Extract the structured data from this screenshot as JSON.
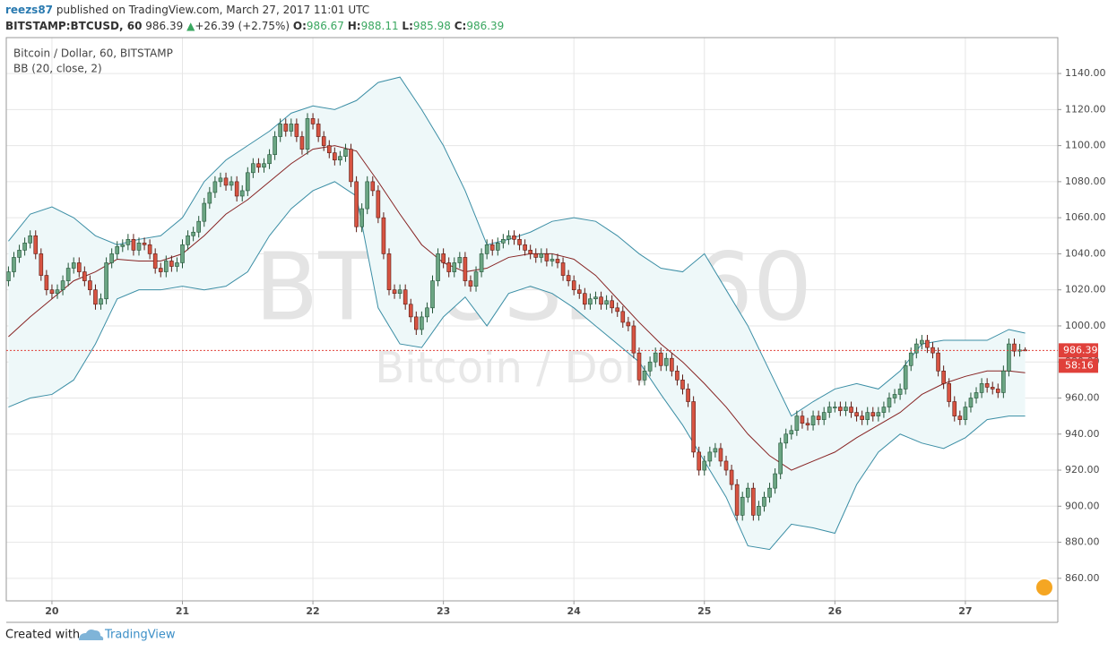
{
  "header": {
    "user": "reezs87",
    "published": "published on TradingView.com, March 27, 2017 11:01 UTC",
    "symbol": "BITSTAMP:BTCUSD, 60",
    "last": "986.39",
    "change_arrow": "▲",
    "change": "+26.39 (+2.75%)",
    "ohlc": [
      {
        "label": "O:",
        "value": "986.67"
      },
      {
        "label": "H:",
        "value": "988.11"
      },
      {
        "label": "L:",
        "value": "985.98"
      },
      {
        "label": "C:",
        "value": "986.39"
      }
    ]
  },
  "footer": {
    "created": "Created with",
    "brand": "TradingView"
  },
  "chart_data": {
    "type": "candlestick",
    "title": "Bitcoin / Dollar, 60, BITSTAMP",
    "watermark": "BTCUSD, 60",
    "watermark_subtitle": "Bitcoin / Dollar",
    "x": [
      -8,
      -7,
      -6,
      -5,
      -4,
      -3,
      -2,
      -1,
      0,
      1,
      2,
      3,
      4,
      5,
      6,
      7,
      8,
      9,
      10,
      11,
      12,
      13,
      14,
      15,
      16,
      17,
      18,
      19,
      20,
      21,
      22,
      23,
      24,
      25,
      26,
      27,
      28,
      29,
      30,
      31,
      32,
      33,
      34,
      35,
      36,
      37,
      38,
      39,
      40,
      41,
      42,
      43,
      44,
      45,
      46,
      47,
      48,
      49,
      50,
      51,
      52,
      53,
      54,
      55,
      56,
      57,
      58,
      59,
      60,
      61,
      62,
      63,
      64,
      65,
      66,
      67,
      68,
      69,
      70,
      71,
      72,
      73,
      74,
      75,
      76,
      77,
      78,
      79,
      80,
      81,
      82,
      83,
      84,
      85,
      86,
      87,
      88,
      89,
      90,
      91,
      92,
      93,
      94,
      95,
      96,
      97,
      98,
      99,
      100,
      101,
      102,
      103,
      104,
      105,
      106,
      107,
      108,
      109,
      110,
      111,
      112,
      113,
      114,
      115,
      116,
      117,
      118,
      119,
      120,
      121,
      122,
      123,
      124,
      125,
      126,
      127,
      128,
      129,
      130,
      131,
      132,
      133,
      134,
      135,
      136,
      137,
      138,
      139,
      140,
      141,
      142,
      143,
      144,
      145,
      146,
      147,
      148,
      149,
      150,
      151,
      152,
      153,
      154,
      155,
      156,
      157,
      158,
      159,
      160,
      161,
      162,
      163,
      164,
      165,
      166,
      167,
      168,
      169,
      170,
      171,
      172,
      173,
      174,
      175,
      176,
      177,
      178,
      179
    ],
    "open": [
      1025,
      1030,
      1038,
      1042,
      1046,
      1050,
      1040,
      1028,
      1020,
      1018,
      1020,
      1025,
      1032,
      1035,
      1030,
      1025,
      1020,
      1012,
      1015,
      1035,
      1040,
      1044,
      1045,
      1048,
      1042,
      1046,
      1045,
      1040,
      1032,
      1030,
      1036,
      1033,
      1035,
      1045,
      1050,
      1052,
      1058,
      1068,
      1074,
      1080,
      1082,
      1078,
      1080,
      1072,
      1075,
      1085,
      1090,
      1088,
      1090,
      1095,
      1105,
      1112,
      1108,
      1112,
      1105,
      1098,
      1115,
      1112,
      1105,
      1100,
      1096,
      1092,
      1094,
      1098,
      1080,
      1055,
      1065,
      1080,
      1075,
      1060,
      1040,
      1020,
      1018,
      1020,
      1012,
      1005,
      998,
      1005,
      1010,
      1025,
      1040,
      1035,
      1030,
      1035,
      1038,
      1025,
      1022,
      1030,
      1040,
      1045,
      1042,
      1046,
      1048,
      1050,
      1048,
      1045,
      1042,
      1040,
      1038,
      1040,
      1036,
      1037,
      1035,
      1028,
      1025,
      1020,
      1018,
      1012,
      1015,
      1016,
      1012,
      1014,
      1010,
      1008,
      1002,
      1000,
      985,
      970,
      975,
      980,
      985,
      978,
      982,
      975,
      970,
      965,
      958,
      930,
      920,
      925,
      930,
      932,
      925,
      920,
      912,
      895,
      905,
      910,
      895,
      900,
      905,
      910,
      918,
      935,
      940,
      942,
      950,
      946,
      945,
      950,
      948,
      952,
      955,
      955,
      953,
      955,
      952,
      950,
      948,
      952,
      950,
      952,
      955,
      960,
      962,
      965,
      978,
      985,
      990,
      992,
      988,
      985,
      975,
      968,
      958,
      950,
      948,
      955,
      960,
      963,
      968,
      966,
      965,
      963,
      975,
      990,
      986,
      986.67
    ],
    "high": [
      1033,
      1041,
      1045,
      1049,
      1053,
      1053,
      1043,
      1031,
      1023,
      1023,
      1028,
      1035,
      1038,
      1038,
      1033,
      1028,
      1023,
      1018,
      1038,
      1043,
      1047,
      1048,
      1051,
      1051,
      1049,
      1049,
      1048,
      1043,
      1035,
      1039,
      1039,
      1038,
      1048,
      1053,
      1055,
      1061,
      1071,
      1077,
      1083,
      1085,
      1085,
      1083,
      1083,
      1078,
      1088,
      1093,
      1093,
      1093,
      1098,
      1108,
      1115,
      1115,
      1115,
      1115,
      1108,
      1118,
      1118,
      1115,
      1108,
      1103,
      1099,
      1097,
      1101,
      1101,
      1083,
      1068,
      1083,
      1083,
      1078,
      1063,
      1043,
      1023,
      1023,
      1023,
      1015,
      1008,
      1008,
      1013,
      1028,
      1043,
      1043,
      1038,
      1038,
      1041,
      1041,
      1028,
      1033,
      1043,
      1048,
      1048,
      1049,
      1051,
      1053,
      1053,
      1051,
      1048,
      1045,
      1043,
      1043,
      1043,
      1040,
      1040,
      1038,
      1031,
      1028,
      1023,
      1021,
      1018,
      1019,
      1019,
      1017,
      1017,
      1013,
      1011,
      1005,
      1003,
      988,
      978,
      983,
      988,
      988,
      985,
      985,
      978,
      973,
      968,
      961,
      933,
      928,
      933,
      935,
      935,
      928,
      923,
      915,
      908,
      913,
      913,
      903,
      908,
      913,
      921,
      938,
      943,
      945,
      953,
      953,
      949,
      953,
      953,
      955,
      958,
      958,
      958,
      958,
      958,
      955,
      953,
      955,
      955,
      955,
      958,
      963,
      965,
      968,
      981,
      988,
      993,
      995,
      995,
      991,
      988,
      978,
      971,
      961,
      953,
      958,
      963,
      966,
      971,
      971,
      969,
      968,
      978,
      993,
      993,
      990,
      988.11
    ],
    "low": [
      1022,
      1027,
      1035,
      1039,
      1043,
      1037,
      1025,
      1017,
      1015,
      1015,
      1017,
      1022,
      1029,
      1027,
      1022,
      1017,
      1009,
      1009,
      1012,
      1032,
      1037,
      1041,
      1042,
      1039,
      1039,
      1042,
      1037,
      1029,
      1027,
      1027,
      1030,
      1030,
      1032,
      1042,
      1047,
      1049,
      1055,
      1065,
      1071,
      1077,
      1075,
      1075,
      1069,
      1069,
      1072,
      1082,
      1085,
      1085,
      1087,
      1092,
      1102,
      1105,
      1105,
      1102,
      1095,
      1095,
      1109,
      1102,
      1097,
      1093,
      1089,
      1089,
      1091,
      1077,
      1052,
      1052,
      1062,
      1072,
      1057,
      1037,
      1017,
      1015,
      1015,
      1009,
      1002,
      995,
      995,
      1002,
      1007,
      1022,
      1032,
      1027,
      1027,
      1032,
      1022,
      1019,
      1019,
      1027,
      1037,
      1039,
      1039,
      1043,
      1045,
      1045,
      1042,
      1039,
      1037,
      1035,
      1035,
      1033,
      1033,
      1032,
      1025,
      1022,
      1017,
      1015,
      1009,
      1009,
      1012,
      1009,
      1009,
      1007,
      1005,
      999,
      997,
      982,
      967,
      967,
      972,
      977,
      975,
      975,
      972,
      967,
      962,
      955,
      927,
      917,
      917,
      922,
      927,
      922,
      917,
      909,
      892,
      892,
      902,
      892,
      892,
      897,
      902,
      907,
      915,
      932,
      937,
      939,
      943,
      942,
      942,
      945,
      945,
      949,
      952,
      950,
      950,
      949,
      947,
      945,
      945,
      947,
      947,
      949,
      952,
      957,
      959,
      962,
      975,
      982,
      987,
      985,
      982,
      972,
      965,
      955,
      947,
      945,
      945,
      952,
      957,
      960,
      963,
      962,
      960,
      960,
      972,
      983,
      983,
      985.98
    ],
    "close": [
      1030,
      1038,
      1042,
      1046,
      1050,
      1040,
      1028,
      1020,
      1018,
      1020,
      1025,
      1032,
      1035,
      1030,
      1025,
      1020,
      1012,
      1015,
      1035,
      1040,
      1044,
      1045,
      1048,
      1042,
      1046,
      1045,
      1040,
      1032,
      1030,
      1036,
      1033,
      1035,
      1045,
      1050,
      1052,
      1058,
      1068,
      1074,
      1080,
      1082,
      1078,
      1080,
      1072,
      1075,
      1085,
      1090,
      1088,
      1090,
      1095,
      1105,
      1112,
      1108,
      1112,
      1105,
      1098,
      1115,
      1112,
      1105,
      1100,
      1096,
      1092,
      1094,
      1098,
      1080,
      1055,
      1065,
      1080,
      1075,
      1060,
      1040,
      1020,
      1018,
      1020,
      1012,
      1005,
      998,
      1005,
      1010,
      1025,
      1040,
      1035,
      1030,
      1035,
      1038,
      1025,
      1022,
      1030,
      1040,
      1045,
      1042,
      1046,
      1048,
      1050,
      1048,
      1045,
      1042,
      1040,
      1038,
      1040,
      1036,
      1037,
      1035,
      1028,
      1025,
      1020,
      1018,
      1012,
      1015,
      1016,
      1012,
      1014,
      1010,
      1008,
      1002,
      1000,
      985,
      970,
      975,
      980,
      985,
      978,
      982,
      975,
      970,
      965,
      958,
      930,
      920,
      925,
      930,
      932,
      925,
      920,
      912,
      895,
      905,
      910,
      895,
      900,
      905,
      910,
      918,
      935,
      940,
      942,
      950,
      946,
      945,
      950,
      948,
      952,
      955,
      955,
      953,
      955,
      952,
      950,
      948,
      952,
      950,
      952,
      955,
      960,
      962,
      965,
      978,
      985,
      990,
      992,
      988,
      985,
      975,
      968,
      958,
      950,
      948,
      955,
      960,
      963,
      968,
      966,
      965,
      963,
      975,
      990,
      986,
      986.67,
      986.39
    ],
    "up_color": "#6ba583",
    "down_color": "#d75442",
    "indicator": {
      "name": "BB (20, close, 2)",
      "x": [
        -8,
        -4,
        0,
        4,
        8,
        12,
        16,
        20,
        24,
        28,
        32,
        36,
        40,
        44,
        48,
        52,
        56,
        60,
        64,
        68,
        72,
        76,
        80,
        84,
        88,
        92,
        96,
        100,
        104,
        108,
        112,
        116,
        120,
        124,
        128,
        132,
        136,
        140,
        144,
        148,
        152,
        156,
        160,
        164,
        168,
        172,
        176,
        179
      ],
      "upper": [
        1047,
        1062,
        1066,
        1060,
        1050,
        1045,
        1048,
        1050,
        1060,
        1080,
        1092,
        1100,
        1108,
        1118,
        1122,
        1120,
        1125,
        1135,
        1138,
        1120,
        1100,
        1075,
        1045,
        1048,
        1052,
        1058,
        1060,
        1058,
        1050,
        1040,
        1032,
        1030,
        1040,
        1020,
        1000,
        975,
        950,
        958,
        965,
        968,
        965,
        975,
        990,
        992,
        992,
        992,
        998,
        996
      ],
      "middle": [
        994,
        1005,
        1015,
        1025,
        1030,
        1037,
        1036,
        1036,
        1040,
        1050,
        1062,
        1070,
        1080,
        1090,
        1098,
        1100,
        1097,
        1080,
        1062,
        1045,
        1035,
        1030,
        1032,
        1038,
        1040,
        1040,
        1037,
        1028,
        1015,
        1002,
        990,
        980,
        968,
        955,
        940,
        928,
        920,
        925,
        930,
        938,
        945,
        952,
        962,
        968,
        972,
        975,
        975,
        974
      ],
      "lower": [
        955,
        960,
        962,
        970,
        990,
        1015,
        1020,
        1020,
        1022,
        1020,
        1022,
        1030,
        1050,
        1065,
        1075,
        1080,
        1072,
        1010,
        990,
        988,
        1005,
        1016,
        1000,
        1018,
        1022,
        1018,
        1010,
        1000,
        990,
        980,
        962,
        945,
        925,
        905,
        878,
        876,
        890,
        888,
        885,
        912,
        930,
        940,
        935,
        932,
        938,
        948,
        950,
        950
      ],
      "band_color": "#3b8ea5",
      "middle_color": "#872323",
      "fill_color": "#eef8f9"
    },
    "last_price": 986.39,
    "last_price_color": "#e0403a",
    "countdown": "58:16",
    "xlim": [
      -8.4,
      185
    ],
    "xticks": [
      {
        "value": 0,
        "label": "20"
      },
      {
        "value": 24,
        "label": "21"
      },
      {
        "value": 48,
        "label": "22"
      },
      {
        "value": 72,
        "label": "23"
      },
      {
        "value": 96,
        "label": "24"
      },
      {
        "value": 120,
        "label": "25"
      },
      {
        "value": 144,
        "label": "26"
      },
      {
        "value": 168,
        "label": "27"
      }
    ],
    "ylim": [
      847.5,
      1159.9
    ],
    "yticks": [
      {
        "value": 860,
        "label": "860.00"
      },
      {
        "value": 880,
        "label": "880.00"
      },
      {
        "value": 900,
        "label": "900.00"
      },
      {
        "value": 920,
        "label": "920.00"
      },
      {
        "value": 940,
        "label": "940.00"
      },
      {
        "value": 960,
        "label": "960.00"
      },
      {
        "value": 980,
        "label": "980.00"
      },
      {
        "value": 1000,
        "label": "1000.00"
      },
      {
        "value": 1020,
        "label": "1020.00"
      },
      {
        "value": 1040,
        "label": "1040.00"
      },
      {
        "value": 1060,
        "label": "1060.00"
      },
      {
        "value": 1080,
        "label": "1080.00"
      },
      {
        "value": 1100,
        "label": "1100.00"
      },
      {
        "value": 1120,
        "label": "1120.00"
      },
      {
        "value": 1140,
        "label": "1140.00"
      }
    ],
    "grid": true
  }
}
